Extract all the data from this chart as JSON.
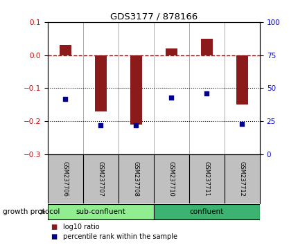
{
  "title": "GDS3177 / 878166",
  "samples": [
    "GSM237706",
    "GSM237707",
    "GSM237708",
    "GSM237710",
    "GSM237711",
    "GSM237712"
  ],
  "log10_ratio": [
    0.03,
    -0.17,
    -0.21,
    0.02,
    0.05,
    -0.15
  ],
  "percentile_rank": [
    42,
    22,
    22,
    43,
    46,
    23
  ],
  "bar_color": "#8B1A1A",
  "dot_color": "#00008B",
  "ylim_left": [
    -0.3,
    0.1
  ],
  "ylim_right": [
    0,
    100
  ],
  "yticks_left": [
    -0.3,
    -0.2,
    -0.1,
    0.0,
    0.1
  ],
  "yticks_right": [
    0,
    25,
    50,
    75,
    100
  ],
  "hline_y": 0.0,
  "dotted_lines": [
    -0.1,
    -0.2
  ],
  "groups": [
    {
      "label": "sub-confluent",
      "start": 0,
      "end": 3,
      "color": "#90EE90"
    },
    {
      "label": "confluent",
      "start": 3,
      "end": 6,
      "color": "#3CB371"
    }
  ],
  "group_label": "growth protocol",
  "legend_items": [
    {
      "color": "#8B1A1A",
      "label": "log10 ratio"
    },
    {
      "color": "#00008B",
      "label": "percentile rank within the sample"
    }
  ],
  "tick_label_color_left": "#CC0000",
  "tick_label_color_right": "#0000CC",
  "background_color": "#FFFFFF",
  "plot_bg_color": "#FFFFFF",
  "sample_bg_color": "#C0C0C0",
  "bar_width": 0.35
}
